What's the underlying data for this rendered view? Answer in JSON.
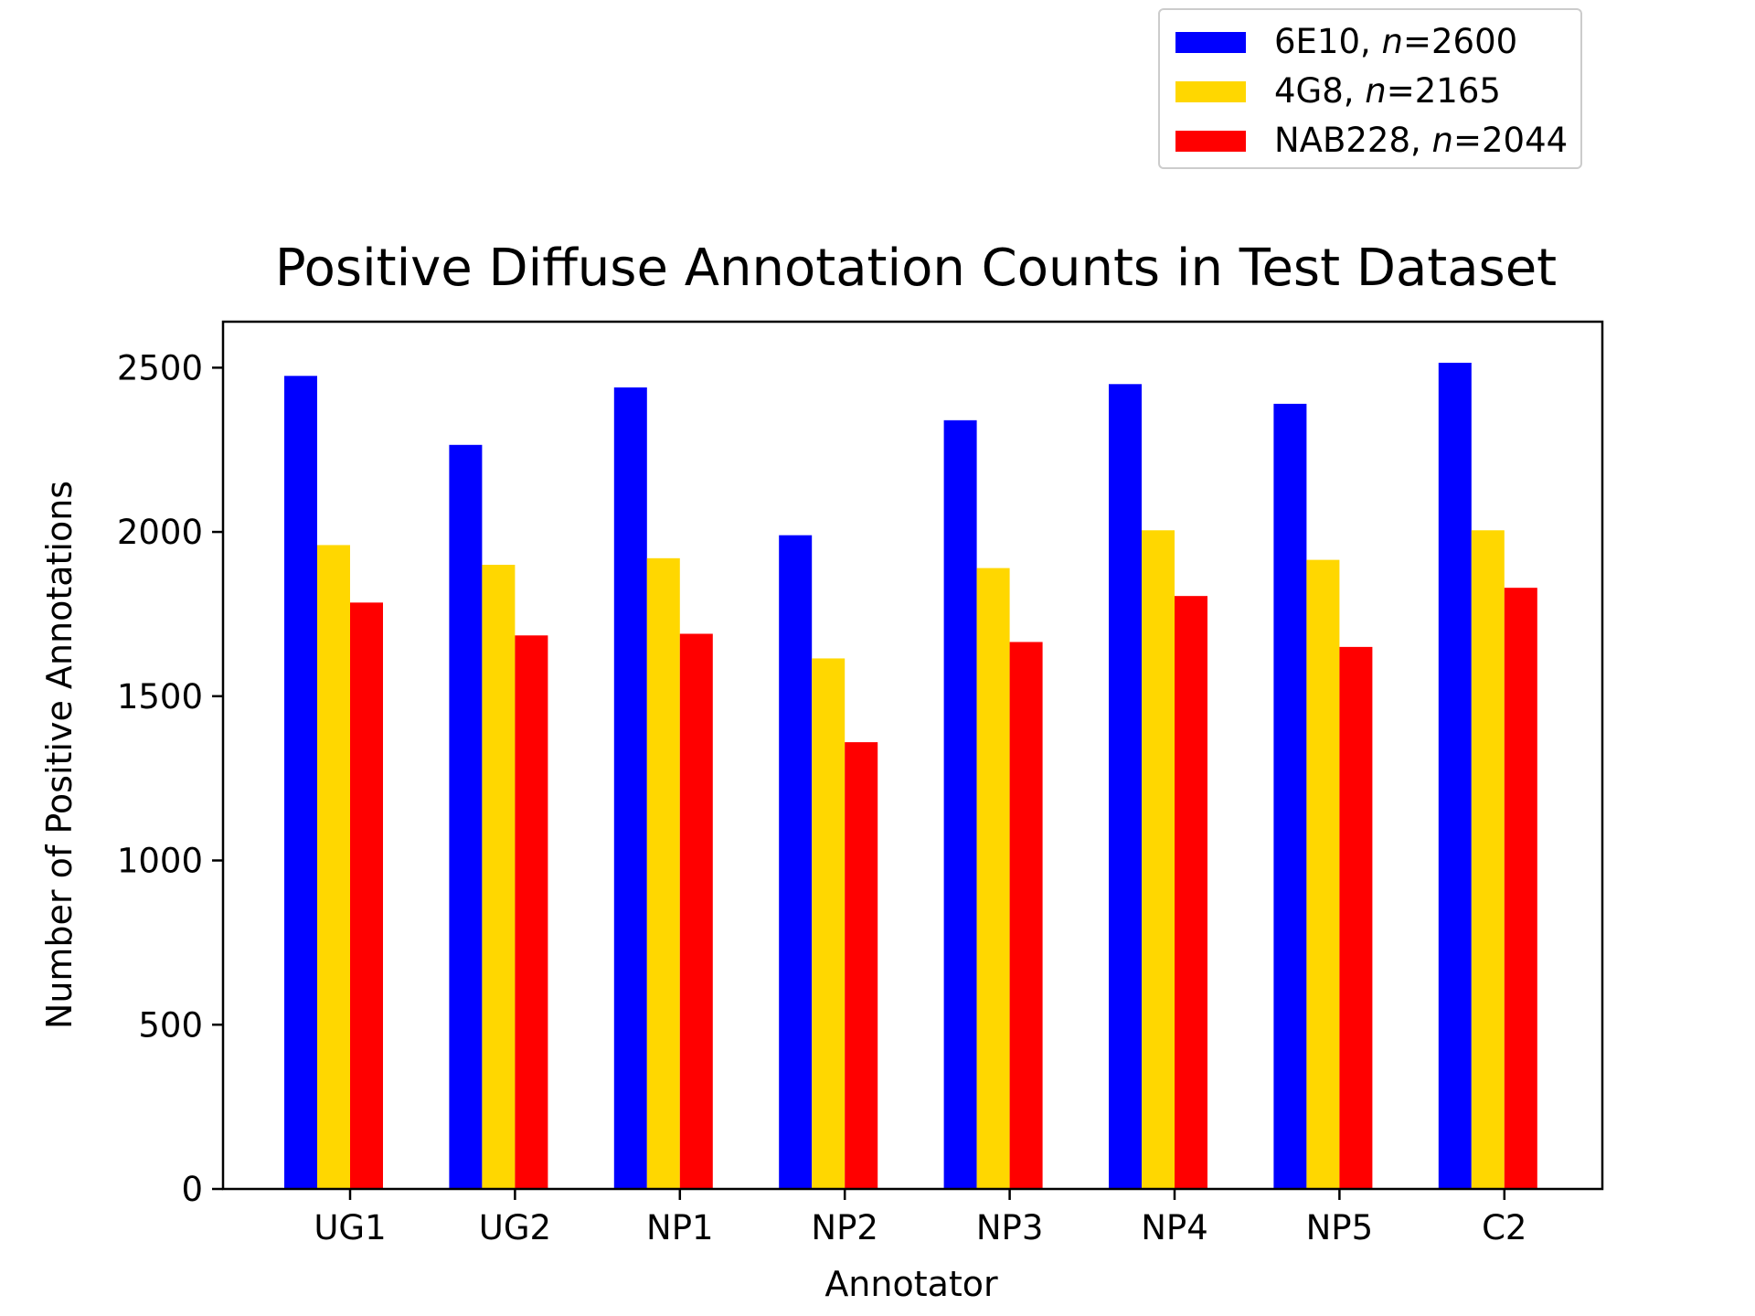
{
  "chart_data": {
    "type": "bar",
    "title": "Positive Diffuse Annotation Counts in Test Dataset",
    "xlabel": "Annotator",
    "ylabel": "Number of Positive Annotations",
    "categories": [
      "UG1",
      "UG2",
      "NP1",
      "NP2",
      "NP3",
      "NP4",
      "NP5",
      "C2"
    ],
    "ylim": [
      0,
      2640
    ],
    "yticks": [
      0,
      500,
      1000,
      1500,
      2000,
      2500
    ],
    "legend_position": "above-top-right",
    "grid": false,
    "series": [
      {
        "name": "6E10, n=2600",
        "name_prefix": "6E10, ",
        "name_n": "2600",
        "color": "#0000ff",
        "values": [
          2475,
          2265,
          2440,
          1990,
          2340,
          2450,
          2390,
          2515
        ]
      },
      {
        "name": "4G8, n=2165",
        "name_prefix": "4G8, ",
        "name_n": "2165",
        "color": "#ffd700",
        "values": [
          1960,
          1900,
          1920,
          1615,
          1890,
          2005,
          1915,
          2005
        ]
      },
      {
        "name": "NAB228, n=2044",
        "name_prefix": "NAB228, ",
        "name_n": "2044",
        "color": "#ff0000",
        "values": [
          1785,
          1685,
          1690,
          1360,
          1665,
          1805,
          1650,
          1830
        ]
      }
    ]
  }
}
